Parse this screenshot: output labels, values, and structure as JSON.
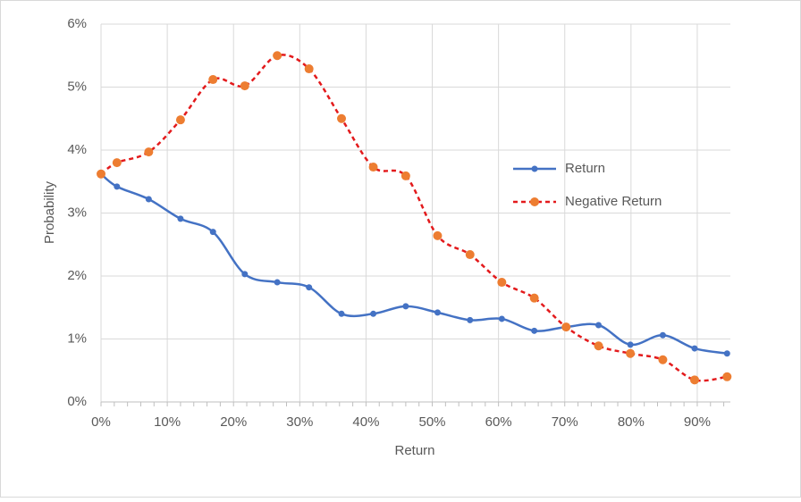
{
  "chart_data": {
    "type": "line",
    "x_label": "Return",
    "y_label": "Probability",
    "x": [
      0,
      2.4,
      7.2,
      12.0,
      16.9,
      21.7,
      26.6,
      31.4,
      36.3,
      41.1,
      46.0,
      50.8,
      55.7,
      60.5,
      65.4,
      70.2,
      75.1,
      79.9,
      84.8,
      89.6,
      94.5
    ],
    "series": [
      {
        "name": "Return",
        "color": "#4472c4",
        "dashed": false,
        "values": [
          3.62,
          3.42,
          3.22,
          2.91,
          2.7,
          2.03,
          1.9,
          1.82,
          1.4,
          1.4,
          1.52,
          1.42,
          1.3,
          1.32,
          1.13,
          1.19,
          1.22,
          0.91,
          1.06,
          0.85,
          0.77
        ]
      },
      {
        "name": "Negative Return",
        "color": "#ed7d31",
        "line_color": "#e31a1c",
        "dashed": true,
        "values": [
          3.62,
          3.8,
          3.97,
          4.48,
          5.12,
          5.02,
          5.5,
          5.29,
          4.5,
          3.73,
          3.59,
          2.64,
          2.34,
          1.9,
          1.65,
          1.19,
          0.89,
          0.77,
          0.67,
          0.35,
          0.4
        ]
      }
    ],
    "xlim": [
      0,
      95
    ],
    "xticks": [
      {
        "value": 0,
        "label": "0%"
      },
      {
        "value": 10,
        "label": "10%"
      },
      {
        "value": 20,
        "label": "20%"
      },
      {
        "value": 30,
        "label": "30%"
      },
      {
        "value": 40,
        "label": "40%"
      },
      {
        "value": 50,
        "label": "50%"
      },
      {
        "value": 60,
        "label": "60%"
      },
      {
        "value": 70,
        "label": "70%"
      },
      {
        "value": 80,
        "label": "80%"
      },
      {
        "value": 90,
        "label": "90%"
      }
    ],
    "ylim": [
      0,
      6
    ],
    "yticks": [
      {
        "value": 0,
        "label": "0%"
      },
      {
        "value": 1,
        "label": "1%"
      },
      {
        "value": 2,
        "label": "2%"
      },
      {
        "value": 3,
        "label": "3%"
      },
      {
        "value": 4,
        "label": "4%"
      },
      {
        "value": 5,
        "label": "5%"
      },
      {
        "value": 6,
        "label": "6%"
      }
    ],
    "grid": true,
    "legend": "right"
  }
}
